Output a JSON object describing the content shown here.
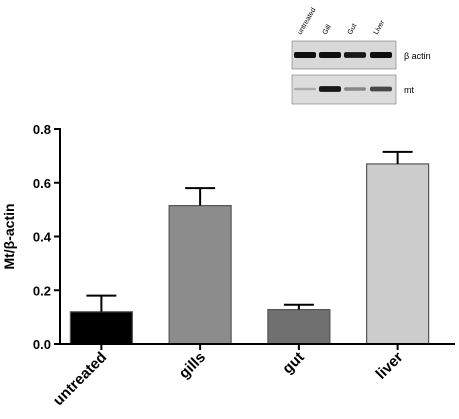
{
  "chart_data": {
    "type": "bar",
    "title": "",
    "xlabel": "",
    "ylabel": "Mt/β-actin",
    "ylim": [
      0,
      0.8
    ],
    "yticks": [
      "0.0",
      "0.2",
      "0.4",
      "0.6",
      "0.8"
    ],
    "grid": false,
    "categories": [
      "untreated",
      "gills",
      "gut",
      "liver"
    ],
    "values": [
      0.12,
      0.515,
      0.128,
      0.67
    ],
    "errors": [
      0.06,
      0.065,
      0.018,
      0.045
    ],
    "colors": [
      "#000000",
      "#8c8c8c",
      "#707070",
      "#cccccc"
    ]
  },
  "western_blot": {
    "lanes": [
      "untreated",
      "Gill",
      "Gut",
      "Liver"
    ],
    "rows": [
      {
        "label": "β actin",
        "intensity": [
          1.0,
          1.0,
          0.95,
          1.0
        ]
      },
      {
        "label": "mt",
        "intensity": [
          0.15,
          0.95,
          0.35,
          0.7
        ]
      }
    ]
  }
}
